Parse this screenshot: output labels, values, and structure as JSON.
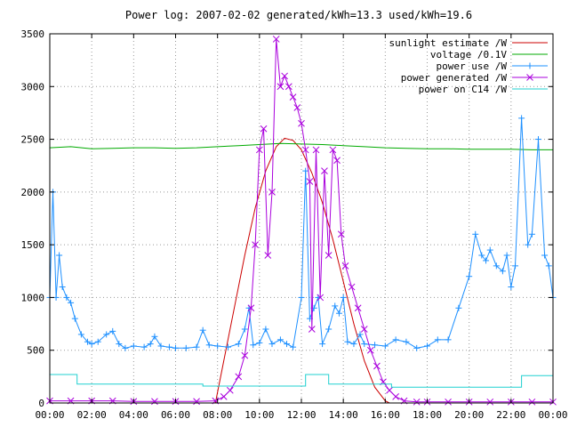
{
  "chart_data": {
    "type": "line",
    "title": "Power log: 2007-02-02 generated/kWh=13.3 used/kWh=19.6",
    "xlabel": "",
    "ylabel": "",
    "xlim": [
      0,
      24
    ],
    "ylim": [
      0,
      3500
    ],
    "x_ticks": [
      "00:00",
      "02:00",
      "04:00",
      "06:00",
      "08:00",
      "10:00",
      "12:00",
      "14:00",
      "16:00",
      "18:00",
      "20:00",
      "22:00",
      "00:00"
    ],
    "y_ticks": [
      0,
      500,
      1000,
      1500,
      2000,
      2500,
      3000,
      3500
    ],
    "grid": true,
    "legend_position": "top-right",
    "series": [
      {
        "name": "sunlight estimate /W",
        "color": "#cc0000",
        "marker": "none",
        "points": [
          [
            7.9,
            0
          ],
          [
            8.3,
            400
          ],
          [
            8.8,
            900
          ],
          [
            9.3,
            1400
          ],
          [
            9.8,
            1850
          ],
          [
            10.3,
            2200
          ],
          [
            10.8,
            2430
          ],
          [
            11.2,
            2510
          ],
          [
            11.6,
            2490
          ],
          [
            12.0,
            2400
          ],
          [
            12.5,
            2180
          ],
          [
            13.0,
            1900
          ],
          [
            13.5,
            1550
          ],
          [
            14.0,
            1150
          ],
          [
            14.5,
            750
          ],
          [
            15.0,
            400
          ],
          [
            15.5,
            150
          ],
          [
            16.0,
            20
          ],
          [
            16.2,
            0
          ]
        ]
      },
      {
        "name": "voltage /0.1V",
        "color": "#00aa00",
        "marker": "none",
        "points": [
          [
            0,
            2420
          ],
          [
            1,
            2430
          ],
          [
            2,
            2410
          ],
          [
            3,
            2415
          ],
          [
            4,
            2420
          ],
          [
            5,
            2420
          ],
          [
            6,
            2415
          ],
          [
            7,
            2420
          ],
          [
            8,
            2430
          ],
          [
            9,
            2440
          ],
          [
            10,
            2450
          ],
          [
            11,
            2460
          ],
          [
            12,
            2455
          ],
          [
            13,
            2450
          ],
          [
            14,
            2440
          ],
          [
            15,
            2430
          ],
          [
            16,
            2420
          ],
          [
            17,
            2415
          ],
          [
            18,
            2410
          ],
          [
            19,
            2410
          ],
          [
            20,
            2405
          ],
          [
            21,
            2405
          ],
          [
            22,
            2405
          ],
          [
            23,
            2400
          ],
          [
            24,
            2400
          ]
        ]
      },
      {
        "name": "power use /W",
        "color": "#1e90ff",
        "marker": "+",
        "points": [
          [
            0,
            1000
          ],
          [
            0.15,
            2000
          ],
          [
            0.3,
            1000
          ],
          [
            0.45,
            1400
          ],
          [
            0.6,
            1100
          ],
          [
            0.8,
            1000
          ],
          [
            1.0,
            950
          ],
          [
            1.2,
            800
          ],
          [
            1.5,
            650
          ],
          [
            1.8,
            580
          ],
          [
            2.0,
            560
          ],
          [
            2.3,
            580
          ],
          [
            2.7,
            650
          ],
          [
            3.0,
            680
          ],
          [
            3.3,
            560
          ],
          [
            3.6,
            520
          ],
          [
            4.0,
            540
          ],
          [
            4.5,
            530
          ],
          [
            4.8,
            560
          ],
          [
            5.0,
            630
          ],
          [
            5.3,
            540
          ],
          [
            5.7,
            530
          ],
          [
            6.0,
            520
          ],
          [
            6.5,
            520
          ],
          [
            7.0,
            530
          ],
          [
            7.3,
            690
          ],
          [
            7.6,
            550
          ],
          [
            8.0,
            540
          ],
          [
            8.5,
            530
          ],
          [
            9.0,
            560
          ],
          [
            9.3,
            700
          ],
          [
            9.5,
            900
          ],
          [
            9.7,
            550
          ],
          [
            10.0,
            570
          ],
          [
            10.3,
            700
          ],
          [
            10.6,
            560
          ],
          [
            11.0,
            600
          ],
          [
            11.3,
            560
          ],
          [
            11.6,
            530
          ],
          [
            12.0,
            1000
          ],
          [
            12.2,
            2200
          ],
          [
            12.4,
            800
          ],
          [
            12.6,
            900
          ],
          [
            12.8,
            1000
          ],
          [
            13.0,
            560
          ],
          [
            13.3,
            700
          ],
          [
            13.6,
            920
          ],
          [
            13.8,
            850
          ],
          [
            14.0,
            1000
          ],
          [
            14.2,
            580
          ],
          [
            14.5,
            560
          ],
          [
            14.8,
            650
          ],
          [
            15.0,
            560
          ],
          [
            15.5,
            550
          ],
          [
            16.0,
            540
          ],
          [
            16.5,
            600
          ],
          [
            17.0,
            580
          ],
          [
            17.5,
            520
          ],
          [
            18.0,
            540
          ],
          [
            18.5,
            600
          ],
          [
            19.0,
            600
          ],
          [
            19.5,
            900
          ],
          [
            20.0,
            1200
          ],
          [
            20.3,
            1600
          ],
          [
            20.6,
            1400
          ],
          [
            20.8,
            1350
          ],
          [
            21.0,
            1450
          ],
          [
            21.3,
            1300
          ],
          [
            21.6,
            1250
          ],
          [
            21.8,
            1400
          ],
          [
            22.0,
            1100
          ],
          [
            22.2,
            1300
          ],
          [
            22.5,
            2700
          ],
          [
            22.8,
            1500
          ],
          [
            23.0,
            1600
          ],
          [
            23.3,
            2500
          ],
          [
            23.6,
            1400
          ],
          [
            23.8,
            1300
          ],
          [
            24.0,
            1000
          ]
        ]
      },
      {
        "name": "power generated /W",
        "color": "#aa00dd",
        "marker": "x",
        "points": [
          [
            0,
            20
          ],
          [
            1,
            20
          ],
          [
            2,
            20
          ],
          [
            3,
            20
          ],
          [
            4,
            15
          ],
          [
            5,
            15
          ],
          [
            6,
            15
          ],
          [
            7,
            15
          ],
          [
            7.9,
            20
          ],
          [
            8.3,
            60
          ],
          [
            8.6,
            120
          ],
          [
            9.0,
            250
          ],
          [
            9.3,
            450
          ],
          [
            9.6,
            900
          ],
          [
            9.8,
            1500
          ],
          [
            10.0,
            2400
          ],
          [
            10.2,
            2600
          ],
          [
            10.4,
            1400
          ],
          [
            10.6,
            2000
          ],
          [
            10.8,
            3450
          ],
          [
            11.0,
            3000
          ],
          [
            11.2,
            3100
          ],
          [
            11.4,
            3000
          ],
          [
            11.6,
            2900
          ],
          [
            11.8,
            2800
          ],
          [
            12.0,
            2650
          ],
          [
            12.2,
            2400
          ],
          [
            12.4,
            2100
          ],
          [
            12.5,
            700
          ],
          [
            12.7,
            2400
          ],
          [
            12.9,
            1000
          ],
          [
            13.1,
            2200
          ],
          [
            13.3,
            1400
          ],
          [
            13.5,
            2400
          ],
          [
            13.7,
            2300
          ],
          [
            13.9,
            1600
          ],
          [
            14.1,
            1300
          ],
          [
            14.4,
            1100
          ],
          [
            14.7,
            900
          ],
          [
            15.0,
            700
          ],
          [
            15.3,
            500
          ],
          [
            15.6,
            350
          ],
          [
            15.9,
            200
          ],
          [
            16.2,
            120
          ],
          [
            16.5,
            60
          ],
          [
            16.9,
            20
          ],
          [
            17.5,
            10
          ],
          [
            18,
            10
          ],
          [
            19,
            10
          ],
          [
            20,
            10
          ],
          [
            21,
            10
          ],
          [
            22,
            10
          ],
          [
            23,
            10
          ],
          [
            24,
            10
          ]
        ]
      },
      {
        "name": "power on C14 /W",
        "color": "#20d0d0",
        "marker": "none",
        "points": [
          [
            0,
            270
          ],
          [
            1.3,
            270
          ],
          [
            1.3,
            180
          ],
          [
            7.3,
            180
          ],
          [
            7.3,
            160
          ],
          [
            12.2,
            160
          ],
          [
            12.2,
            270
          ],
          [
            13.3,
            270
          ],
          [
            13.3,
            180
          ],
          [
            16.3,
            180
          ],
          [
            16.3,
            150
          ],
          [
            22.5,
            150
          ],
          [
            22.5,
            260
          ],
          [
            24,
            260
          ]
        ]
      }
    ]
  }
}
